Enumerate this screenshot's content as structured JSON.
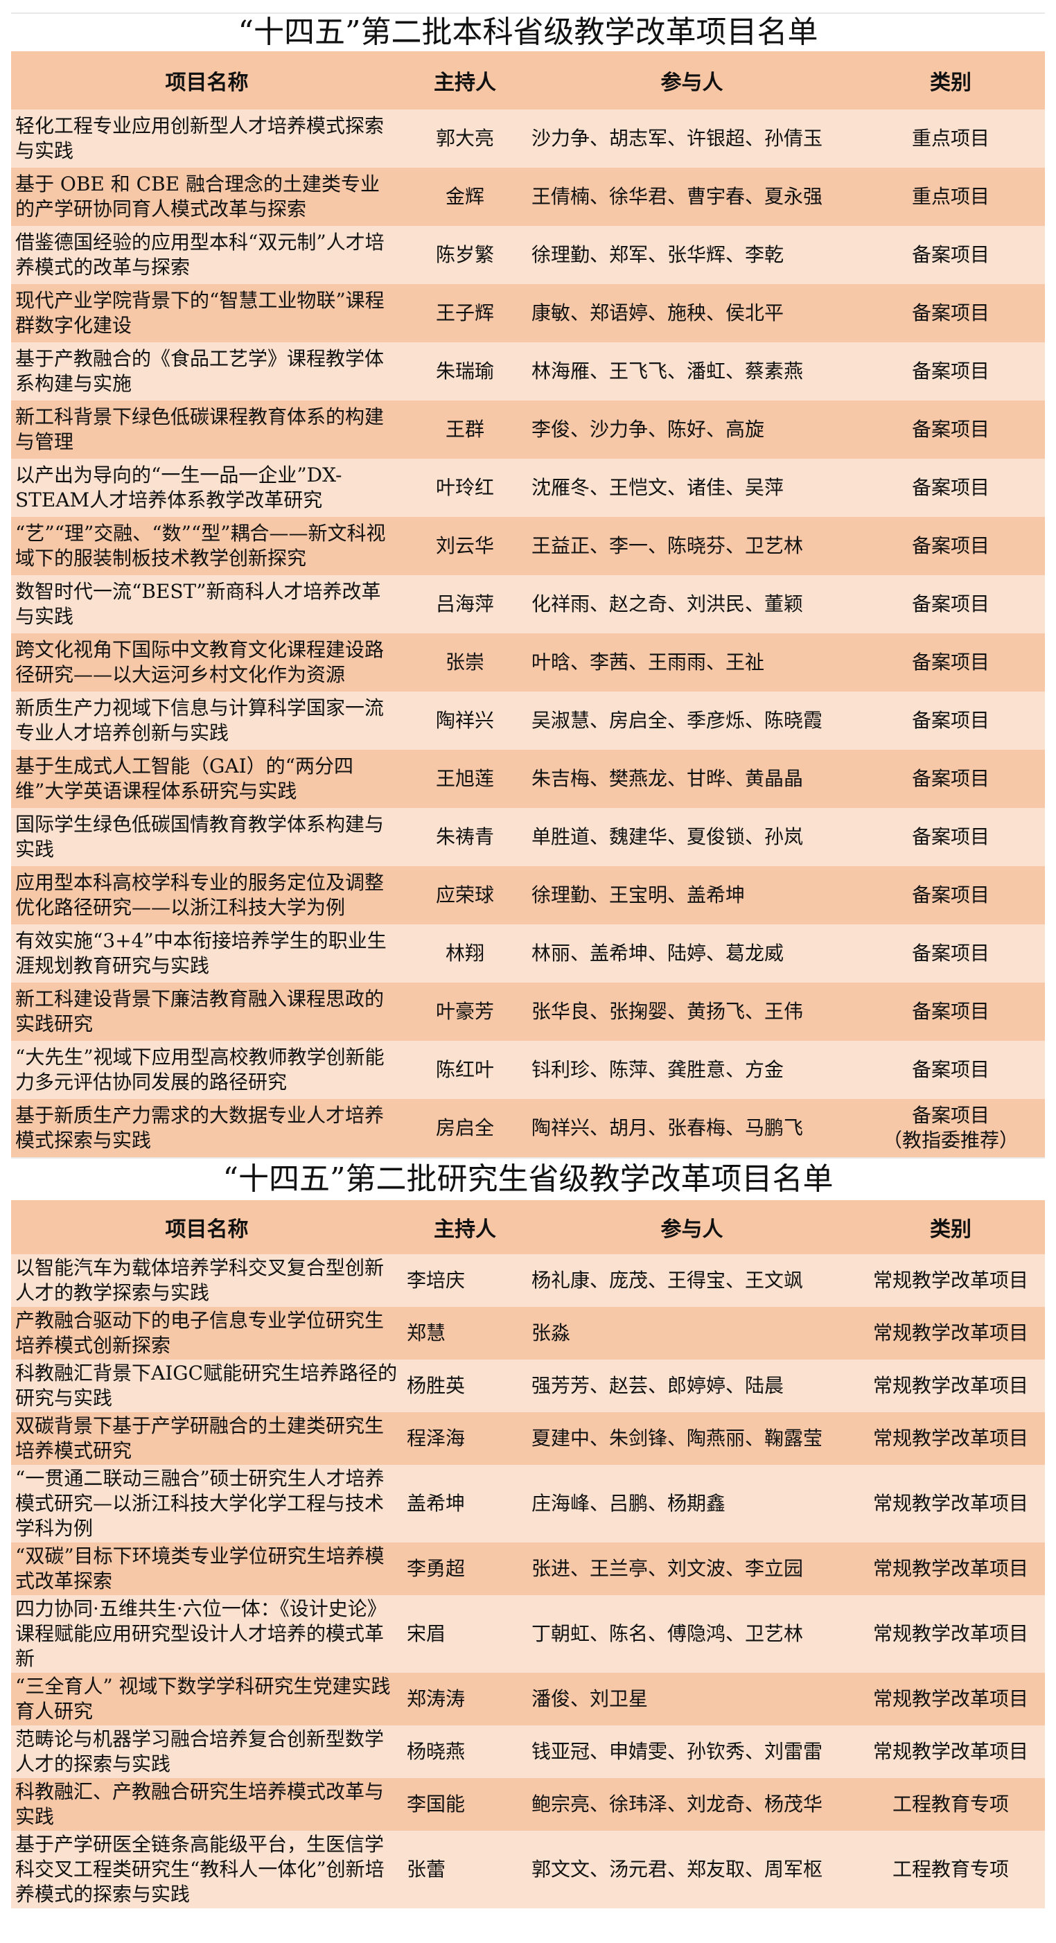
{
  "undergrad": {
    "title": "“十四五”第二批本科省级教学改革项目名单",
    "headers": [
      "项目名称",
      "主持人",
      "参与人",
      "类别"
    ],
    "rows": [
      [
        "轻化工程专业应用创新型人才培养模式探索与实践",
        "郭大亮",
        "沙力争、胡志军、许银超、孙倩玉",
        "重点项目"
      ],
      [
        "基于 OBE 和 CBE 融合理念的土建类专业的产学研协同育人模式改革与探索",
        "金辉",
        "王倩楠、徐华君、曹宇春、夏永强",
        "重点项目"
      ],
      [
        "借鉴德国经验的应用型本科“双元制”人才培养模式的改革与探索",
        "陈岁繁",
        "徐理勤、郑军、张华辉、李乾",
        "备案项目"
      ],
      [
        "现代产业学院背景下的“智慧工业物联”课程群数字化建设",
        "王子辉",
        "康敏、郑语婷、施秧、侯北平",
        "备案项目"
      ],
      [
        "基于产教融合的《食品工艺学》课程教学体系构建与实施",
        "朱瑞瑜",
        "林海雁、王飞飞、潘虹、蔡素燕",
        "备案项目"
      ],
      [
        "新工科背景下绿色低碳课程教育体系的构建与管理",
        "王群",
        "李俊、沙力争、陈好、高旋",
        "备案项目"
      ],
      [
        "以产出为导向的“一生一品一企业”DX-STEAM人才培养体系教学改革研究",
        "叶玲红",
        "沈雁冬、王恺文、诸佳、吴萍",
        "备案项目"
      ],
      [
        "“艺”“理”交融、“数”“型”耦合——新文科视域下的服装制板技术教学创新探究",
        "刘云华",
        "王益正、李一、陈晓芬、卫艺林",
        "备案项目"
      ],
      [
        "数智时代一流“BEST”新商科人才培养改革与实践",
        "吕海萍",
        "化祥雨、赵之奇、刘洪民、董颖",
        "备案项目"
      ],
      [
        "跨文化视角下国际中文教育文化课程建设路径研究——以大运河乡村文化作为资源",
        "张崇",
        "叶晗、李茜、王雨雨、王祉",
        "备案项目"
      ],
      [
        "新质生产力视域下信息与计算科学国家一流专业人才培养创新与实践",
        "陶祥兴",
        "吴淑慧、房启全、季彦烁、陈晓霞",
        "备案项目"
      ],
      [
        "基于生成式人工智能（GAI）的“两分四维”大学英语课程体系研究与实践",
        "王旭莲",
        "朱吉梅、樊燕龙、甘晔、黄晶晶",
        "备案项目"
      ],
      [
        "国际学生绿色低碳国情教育教学体系构建与实践",
        "朱祷青",
        "单胜道、魏建华、夏俊锁、孙岚",
        "备案项目"
      ],
      [
        "应用型本科高校学科专业的服务定位及调整优化路径研究——以浙江科技大学为例",
        "应荣球",
        "徐理勤、王宝明、盖希坤",
        "备案项目"
      ],
      [
        "有效实施“3+4”中本衔接培养学生的职业生涯规划教育研究与实践",
        "林翔",
        "林丽、盖希坤、陆婷、葛龙威",
        "备案项目"
      ],
      [
        "新工科建设背景下廉洁教育融入课程思政的实践研究",
        "叶豪芳",
        "张华良、张掬婴、黄扬飞、王伟",
        "备案项目"
      ],
      [
        "“大先生”视域下应用型高校教师教学创新能力多元评估协同发展的路径研究",
        "陈红叶",
        "钭利珍、陈萍、龚胜意、方金",
        "备案项目"
      ],
      [
        "基于新质生产力需求的大数据专业人才培养模式探索与实践",
        "房启全",
        "陶祥兴、胡月、张春梅、马鹏飞",
        "备案项目\n（教指委推荐）"
      ]
    ]
  },
  "graduate": {
    "title": "“十四五”第二批研究生省级教学改革项目名单",
    "headers": [
      "项目名称",
      "主持人",
      "参与人",
      "类别"
    ],
    "rows": [
      [
        "以智能汽车为载体培养学科交叉复合型创新人才的教学探索与实践",
        "李培庆",
        "杨礼康、庞茂、王得宝、王文飒",
        "常规教学改革项目"
      ],
      [
        "产教融合驱动下的电子信息专业学位研究生培养模式创新探索",
        "郑慧",
        "张淼",
        "常规教学改革项目"
      ],
      [
        "科教融汇背景下AIGC赋能研究生培养路径的研究与实践",
        "杨胜英",
        "强芳芳、赵芸、郎婷婷、陆晨",
        "常规教学改革项目"
      ],
      [
        "双碳背景下基于产学研融合的土建类研究生培养模式研究",
        "程泽海",
        "夏建中、朱剑锋、陶燕丽、鞠露莹",
        "常规教学改革项目"
      ],
      [
        "“一贯通二联动三融合”硕士研究生人才培养模式研究—以浙江科技大学化学工程与技术学科为例",
        "盖希坤",
        "庄海峰、吕鹏、杨期鑫",
        "常规教学改革项目"
      ],
      [
        "“双碳”目标下环境类专业学位研究生培养模式改革探索",
        "李勇超",
        "张进、王兰亭、刘文波、李立园",
        "常规教学改革项目"
      ],
      [
        "四力协同·五维共生·六位一体：《设计史论》课程赋能应用研究型设计人才培养的模式革新",
        "宋眉",
        "丁朝虹、陈名、傅隐鸿、卫艺林",
        "常规教学改革项目"
      ],
      [
        "“三全育人” 视域下数学学科研究生党建实践育人研究",
        "郑涛涛",
        "潘俊、刘卫星",
        "常规教学改革项目"
      ],
      [
        "范畴论与机器学习融合培养复合创新型数学人才的探索与实践",
        "杨晓燕",
        "钱亚冠、申婧雯、孙钦秀、刘雷雷",
        "常规教学改革项目"
      ],
      [
        "科教融汇、产教融合研究生培养模式改革与实践",
        "李国能",
        "鲍宗亮、徐玮泽、刘龙奇、杨茂华",
        "工程教育专项"
      ],
      [
        "基于产学研医全链条高能级平台，生医信学科交叉工程类研究生“教科人一体化”创新培养模式的探索与实践",
        "张蕾",
        "郭文文、汤元君、郑友取、周军枢",
        "工程教育专项"
      ]
    ]
  },
  "colors": {
    "header": "#f7c6a5",
    "row_light": "#fbe2d0",
    "row_dark": "#f7c8a8"
  }
}
